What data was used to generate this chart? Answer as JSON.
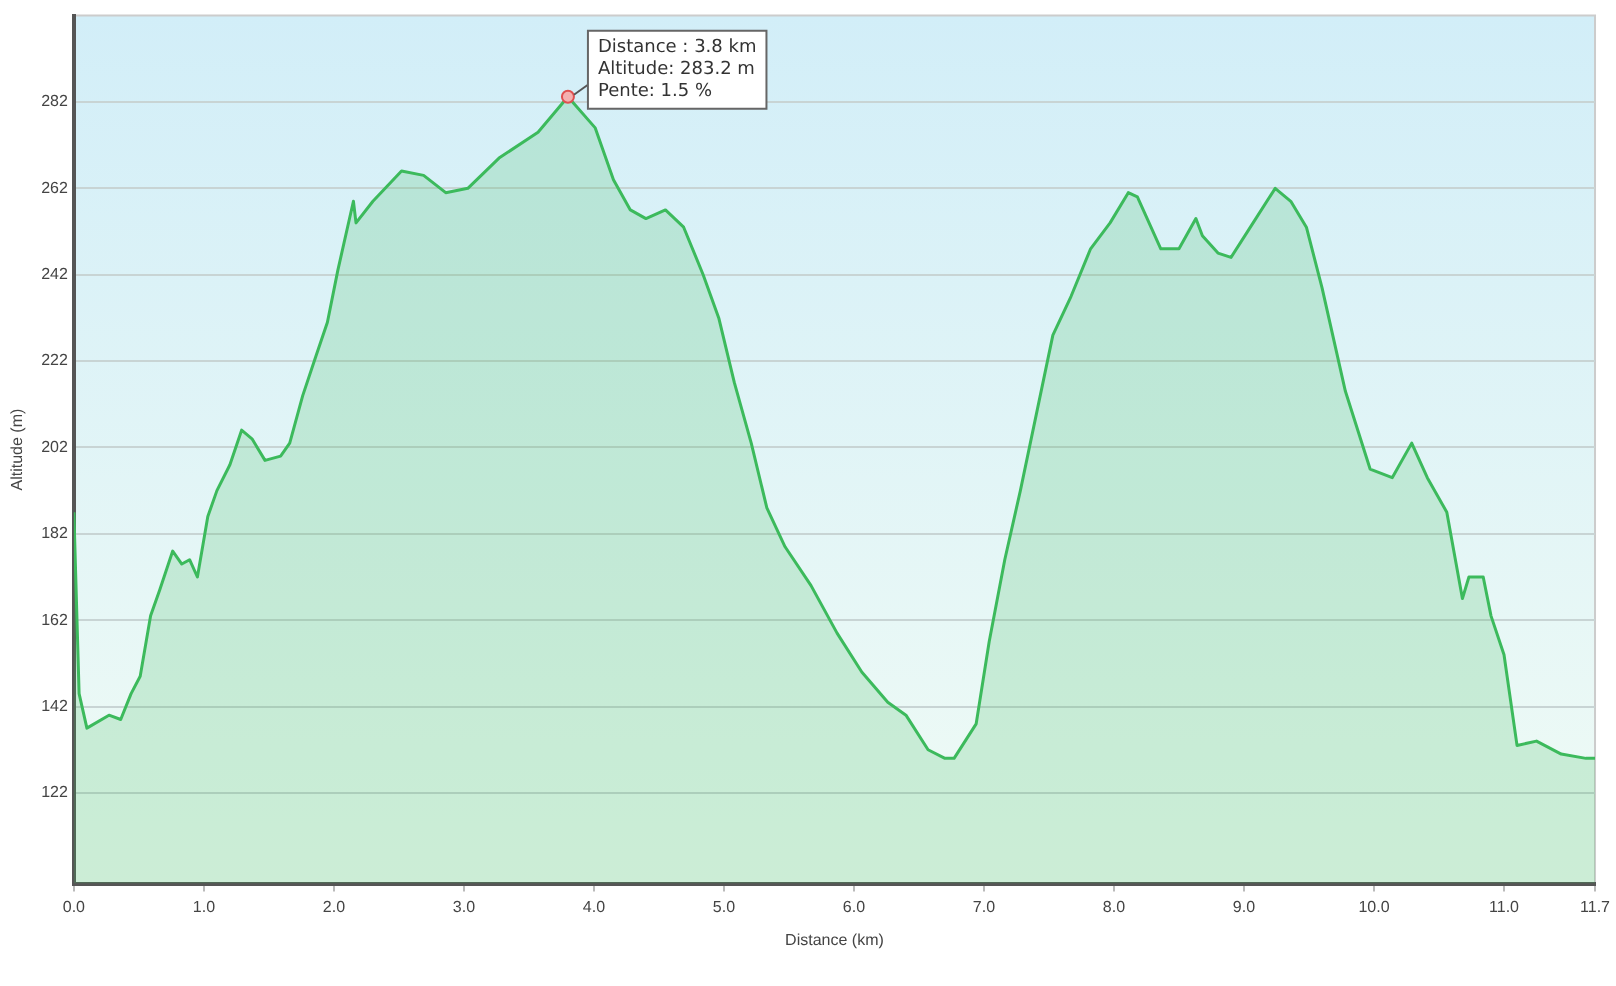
{
  "chart_data": {
    "type": "area",
    "xlabel": "Distance (km)",
    "ylabel": "Altitude (m)",
    "xlim": [
      0,
      11.7
    ],
    "xticks": [
      {
        "value": 0,
        "label": "0.0"
      },
      {
        "value": 1,
        "label": "1.0"
      },
      {
        "value": 2,
        "label": "2.0"
      },
      {
        "value": 3,
        "label": "3.0"
      },
      {
        "value": 4,
        "label": "4.0"
      },
      {
        "value": 5,
        "label": "5.0"
      },
      {
        "value": 6,
        "label": "6.0"
      },
      {
        "value": 7,
        "label": "7.0"
      },
      {
        "value": 8,
        "label": "8.0"
      },
      {
        "value": 9,
        "label": "9.0"
      },
      {
        "value": 10,
        "label": "10.0"
      },
      {
        "value": 11,
        "label": "11.0"
      },
      {
        "value": 11.7,
        "label": "11.7"
      }
    ],
    "ylim": [
      101,
      302
    ],
    "yticks": [
      122,
      142,
      162,
      182,
      202,
      222,
      242,
      262,
      282
    ],
    "grid": "y",
    "legend": false,
    "marker": "none",
    "line_style": "solid",
    "x": [
      0,
      0.04,
      0.1,
      0.27,
      0.36,
      0.44,
      0.51,
      0.59,
      0.66,
      0.76,
      0.83,
      0.89,
      0.95,
      1.03,
      1.1,
      1.2,
      1.29,
      1.37,
      1.47,
      1.59,
      1.66,
      1.76,
      1.86,
      1.95,
      2.03,
      2.15,
      2.17,
      2.3,
      2.52,
      2.69,
      2.86,
      3.03,
      3.27,
      3.57,
      3.8,
      4.01,
      4.15,
      4.28,
      4.4,
      4.55,
      4.69,
      4.84,
      4.96,
      5.08,
      5.21,
      5.33,
      5.47,
      5.67,
      5.87,
      6.06,
      6.26,
      6.4,
      6.57,
      6.7,
      6.77,
      6.94,
      7.04,
      7.16,
      7.28,
      7.53,
      7.67,
      7.82,
      7.97,
      8.11,
      8.18,
      8.36,
      8.5,
      8.63,
      8.68,
      8.8,
      8.9,
      9.07,
      9.24,
      9.36,
      9.48,
      9.6,
      9.78,
      9.97,
      10.14,
      10.29,
      10.41,
      10.56,
      10.68,
      10.73,
      10.84,
      10.9,
      11,
      11.1,
      11.25,
      11.44,
      11.63,
      11.7
    ],
    "series": [
      {
        "color": "#3cba5c",
        "values": [
          187,
          145,
          137,
          140,
          139,
          145,
          149,
          163,
          169,
          178,
          175,
          176,
          172,
          186,
          192,
          198,
          206,
          204,
          199,
          200,
          203,
          214,
          223,
          231,
          243,
          259,
          254,
          259,
          266,
          265,
          261,
          262,
          269,
          275,
          283.2,
          276,
          264,
          257,
          255,
          257,
          253,
          242,
          232,
          217,
          203,
          188,
          179,
          170,
          159,
          150,
          143,
          140,
          132,
          130,
          130,
          138,
          157,
          176,
          192,
          228,
          237,
          248,
          254,
          261,
          260,
          248,
          248,
          255,
          251,
          247,
          246,
          254,
          262,
          259,
          253,
          239,
          215,
          197,
          195,
          203,
          195,
          187,
          167,
          172,
          172,
          163,
          154,
          133,
          134,
          131,
          130,
          130
        ]
      }
    ],
    "annotations": [
      {
        "text": "Distance : 3.8 km\nAltitude: 283.2 m\nPente: 1.5 %",
        "x": 3.8,
        "y": 283.2
      }
    ]
  }
}
